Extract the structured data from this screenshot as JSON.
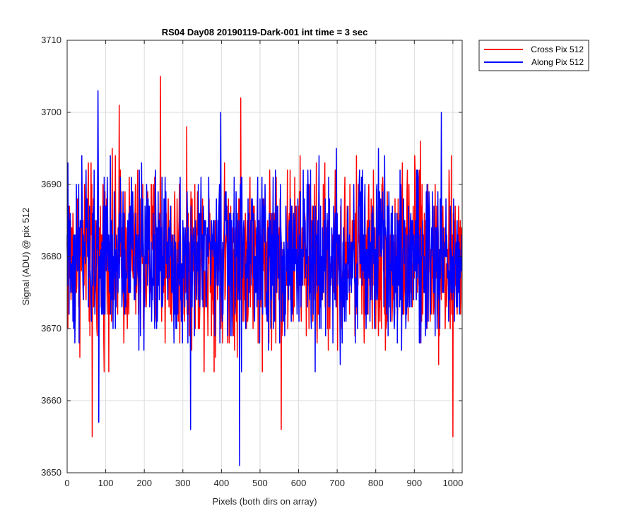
{
  "chart_data": {
    "type": "line",
    "title": "RS04 Day08 20190119-Dark-001 int time = 3 sec",
    "xlabel": "Pixels (both dirs on array)",
    "ylabel": "Signal (ADU) @ pix 512",
    "xlim": [
      0,
      1024
    ],
    "ylim": [
      3650,
      3710
    ],
    "xticks": [
      0,
      100,
      200,
      300,
      400,
      500,
      600,
      700,
      800,
      900,
      1000
    ],
    "yticks": [
      3650,
      3660,
      3670,
      3680,
      3690,
      3700,
      3710
    ],
    "grid": true,
    "legend_position": "outside-top-right",
    "series": [
      {
        "name": "Cross Pix 512",
        "color": "#ff0000",
        "mean": 3680,
        "noise_range": [
          3662,
          3698
        ],
        "x_count": 1024,
        "peaks": [
          {
            "x": 65,
            "y": 3655
          },
          {
            "x": 135,
            "y": 3701
          },
          {
            "x": 242,
            "y": 3705
          },
          {
            "x": 450,
            "y": 3702
          },
          {
            "x": 555,
            "y": 3656
          },
          {
            "x": 1000,
            "y": 3655
          }
        ]
      },
      {
        "name": "Along Pix 512",
        "color": "#0000ff",
        "mean": 3680,
        "noise_range": [
          3662,
          3698
        ],
        "x_count": 1024,
        "peaks": [
          {
            "x": 80,
            "y": 3703
          },
          {
            "x": 82,
            "y": 3657
          },
          {
            "x": 320,
            "y": 3656
          },
          {
            "x": 398,
            "y": 3700
          },
          {
            "x": 447,
            "y": 3651
          },
          {
            "x": 970,
            "y": 3700
          }
        ]
      }
    ]
  }
}
